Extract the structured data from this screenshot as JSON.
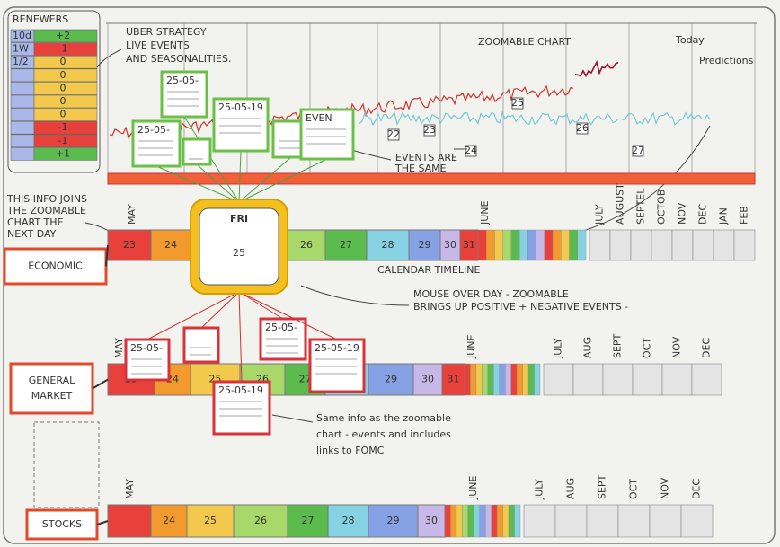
{
  "renewers": {
    "title": "RENEWERS",
    "rows": [
      {
        "label": "10d",
        "value": "+2"
      },
      {
        "label": "1W",
        "value": "-1"
      },
      {
        "label": "1/2",
        "value": "0"
      },
      {
        "value": "0"
      },
      {
        "value": "0"
      },
      {
        "value": "0"
      },
      {
        "value": "0"
      },
      {
        "value": "-1"
      },
      {
        "value": "-1"
      },
      {
        "value": "+1"
      }
    ]
  },
  "strategy_note": [
    "UBER STRATEGY",
    "LIVE EVENTS",
    "AND SEASONALITIES."
  ],
  "chart": {
    "title": "ZOOMABLE CHART",
    "today": "Today",
    "predictions": "Predictions",
    "markers": [
      "22",
      "23",
      "24",
      "25",
      "26",
      "27"
    ],
    "events_note": [
      "EVENTS ARE",
      "THE SAME"
    ]
  },
  "top_cards": [
    "25-05-",
    "25-05-",
    "25-05-19",
    "EVEN"
  ],
  "join_note": [
    "THIS INFO JOINS",
    "THE ZOOMABLE",
    "CHART THE",
    "NEXT DAY"
  ],
  "today_card": {
    "weekday": "FRI",
    "day": "25"
  },
  "calendar_label": "CALENDAR TIMELINE",
  "mouse_note": [
    "MOUSE OVER DAY - ZOOMABLE",
    "BRINGS UP POSITIVE + NEGATIVE EVENTS -"
  ],
  "bottom_cards": [
    "25-05-",
    "25-05-",
    "25-05-19",
    "25-05-19"
  ],
  "same_note": [
    "Same info as the zoomable",
    "chart - events and includes",
    "links to FOMC"
  ],
  "timelines": [
    {
      "label": [
        "ECONOMIC"
      ],
      "first_month": "MAY",
      "days": [
        "23",
        "24",
        "26",
        "27",
        "28",
        "29",
        "30",
        "31"
      ],
      "june": "JUNE",
      "months": [
        "JULY",
        "AUGUST",
        "SEPTEL",
        "OCTOB",
        "NOV",
        "DEC",
        "JAN",
        "FEB"
      ]
    },
    {
      "label": [
        "GENERAL",
        "MARKET"
      ],
      "first_month": "MAY",
      "days": [
        "23",
        "24",
        "25",
        "26",
        "27",
        "28",
        "29",
        "30",
        "31"
      ],
      "june": "JUNE",
      "months": [
        "JULY",
        "AUG",
        "SEPT",
        "OCT",
        "NOV",
        "DEC"
      ]
    },
    {
      "label": [
        "STOCKS"
      ],
      "first_month": "MAY",
      "days": [
        "24",
        "25",
        "26",
        "27",
        "28",
        "29",
        "30"
      ],
      "june": "JUNE",
      "months": [
        "JULY",
        "AUG",
        "SEPT",
        "OCT",
        "NOV",
        "DEC"
      ]
    }
  ]
}
